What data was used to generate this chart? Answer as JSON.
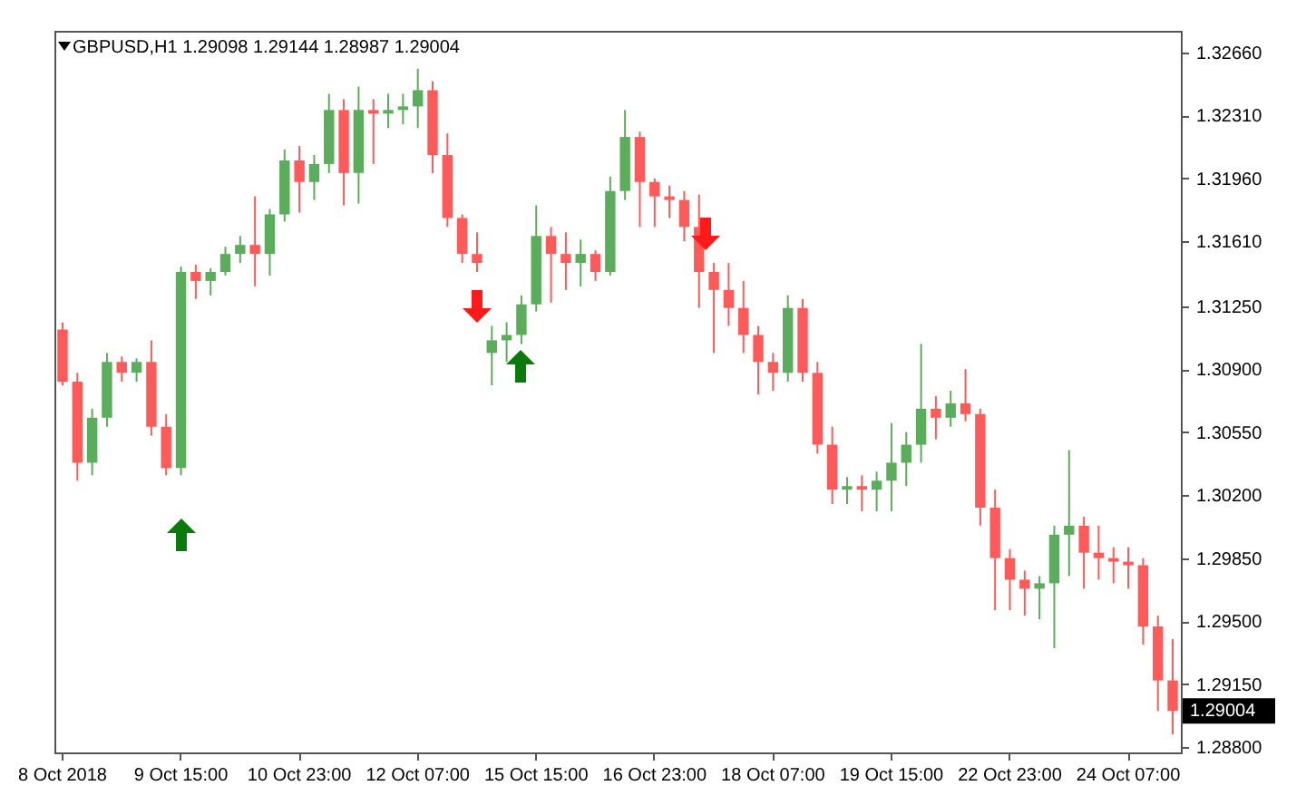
{
  "chart_data": {
    "type": "candlestick",
    "title": "GBPUSD,H1  1.29098 1.29144 1.28987 1.29004",
    "categories": [
      "8 Oct 2018",
      null,
      null,
      null,
      null,
      null,
      null,
      null,
      "9 Oct 15:00",
      null,
      null,
      null,
      null,
      null,
      null,
      null,
      "10 Oct 23:00",
      null,
      null,
      null,
      null,
      null,
      null,
      null,
      "12 Oct 07:00",
      null,
      null,
      null,
      null,
      null,
      null,
      null,
      "15 Oct 15:00",
      null,
      null,
      null,
      null,
      null,
      null,
      null,
      "16 Oct 23:00",
      null,
      null,
      null,
      null,
      null,
      null,
      null,
      "18 Oct 07:00",
      null,
      null,
      null,
      null,
      null,
      null,
      null,
      "19 Oct 15:00",
      null,
      null,
      null,
      null,
      null,
      null,
      null,
      "22 Oct 23:00",
      null,
      null,
      null,
      null,
      null,
      null,
      null,
      "24 Oct 07:00",
      null,
      null,
      null
    ],
    "ohlc": [
      [
        1.3112,
        1.3116,
        1.3081,
        1.3083
      ],
      [
        1.3083,
        1.3088,
        1.3028,
        1.3038
      ],
      [
        1.3038,
        1.3068,
        1.3031,
        1.3063
      ],
      [
        1.3063,
        1.3099,
        1.3058,
        1.3094
      ],
      [
        1.3094,
        1.3097,
        1.3083,
        1.3088
      ],
      [
        1.3088,
        1.3096,
        1.3083,
        1.3094
      ],
      [
        1.3094,
        1.3106,
        1.3053,
        1.3058
      ],
      [
        1.3058,
        1.3065,
        1.3031,
        1.3035
      ],
      [
        1.3035,
        1.3147,
        1.3031,
        1.3144
      ],
      [
        1.3144,
        1.3148,
        1.3129,
        1.3139
      ],
      [
        1.3139,
        1.3146,
        1.3131,
        1.3144
      ],
      [
        1.3144,
        1.3158,
        1.3142,
        1.3154
      ],
      [
        1.3154,
        1.3164,
        1.3149,
        1.3159
      ],
      [
        1.3159,
        1.3186,
        1.3136,
        1.3154
      ],
      [
        1.3154,
        1.3179,
        1.3142,
        1.3176
      ],
      [
        1.3176,
        1.3212,
        1.3172,
        1.3206
      ],
      [
        1.3206,
        1.3214,
        1.3177,
        1.3194
      ],
      [
        1.3194,
        1.3209,
        1.3184,
        1.3204
      ],
      [
        1.3204,
        1.3243,
        1.3199,
        1.3234
      ],
      [
        1.3234,
        1.324,
        1.3181,
        1.3199
      ],
      [
        1.3199,
        1.3247,
        1.3182,
        1.3234
      ],
      [
        1.3234,
        1.324,
        1.3204,
        1.3232
      ],
      [
        1.3232,
        1.3243,
        1.3224,
        1.3234
      ],
      [
        1.3234,
        1.3243,
        1.3226,
        1.3236
      ],
      [
        1.3236,
        1.3257,
        1.3224,
        1.3245
      ],
      [
        1.3245,
        1.325,
        1.3199,
        1.3209
      ],
      [
        1.3209,
        1.3221,
        1.3169,
        1.3174
      ],
      [
        1.3174,
        1.3176,
        1.3149,
        1.3154
      ],
      [
        1.3154,
        1.3166,
        1.3144,
        1.3149
      ],
      [
        1.3099,
        1.3114,
        1.3081,
        1.3106
      ],
      [
        1.3106,
        1.3116,
        1.3094,
        1.3109
      ],
      [
        1.3109,
        1.3131,
        1.3104,
        1.3126
      ],
      [
        1.3126,
        1.3181,
        1.3122,
        1.3164
      ],
      [
        1.3164,
        1.3169,
        1.3127,
        1.3154
      ],
      [
        1.3154,
        1.3166,
        1.3134,
        1.3149
      ],
      [
        1.3149,
        1.3162,
        1.3136,
        1.3154
      ],
      [
        1.3154,
        1.3156,
        1.3139,
        1.3144
      ],
      [
        1.3144,
        1.3197,
        1.3142,
        1.3189
      ],
      [
        1.3189,
        1.3234,
        1.3184,
        1.3219
      ],
      [
        1.3219,
        1.3222,
        1.3169,
        1.3194
      ],
      [
        1.3194,
        1.3196,
        1.3169,
        1.3186
      ],
      [
        1.3186,
        1.3192,
        1.3174,
        1.3184
      ],
      [
        1.3184,
        1.3189,
        1.3161,
        1.3169
      ],
      [
        1.3169,
        1.3187,
        1.3124,
        1.3144
      ],
      [
        1.3144,
        1.3149,
        1.3099,
        1.3134
      ],
      [
        1.3134,
        1.3149,
        1.3114,
        1.3124
      ],
      [
        1.3124,
        1.3139,
        1.3099,
        1.3109
      ],
      [
        1.3109,
        1.3114,
        1.3076,
        1.3094
      ],
      [
        1.3094,
        1.3099,
        1.3078,
        1.3088
      ],
      [
        1.3088,
        1.3131,
        1.3083,
        1.3124
      ],
      [
        1.3124,
        1.3129,
        1.3083,
        1.3088
      ],
      [
        1.3088,
        1.3094,
        1.3043,
        1.3048
      ],
      [
        1.3048,
        1.3058,
        1.3015,
        1.3023
      ],
      [
        1.3023,
        1.303,
        1.3015,
        1.3025
      ],
      [
        1.3025,
        1.3031,
        1.3011,
        1.3023
      ],
      [
        1.3023,
        1.3033,
        1.3011,
        1.3028
      ],
      [
        1.3028,
        1.306,
        1.3011,
        1.3038
      ],
      [
        1.3038,
        1.3055,
        1.3025,
        1.3048
      ],
      [
        1.3048,
        1.3104,
        1.3038,
        1.3068
      ],
      [
        1.3068,
        1.3075,
        1.3051,
        1.3063
      ],
      [
        1.3063,
        1.3078,
        1.3058,
        1.3071
      ],
      [
        1.3071,
        1.309,
        1.3061,
        1.3065
      ],
      [
        1.3065,
        1.3068,
        1.3003,
        1.3013
      ],
      [
        1.3013,
        1.3023,
        1.2956,
        1.2985
      ],
      [
        1.2985,
        1.299,
        1.2956,
        1.2973
      ],
      [
        1.2973,
        1.2978,
        1.2953,
        1.2968
      ],
      [
        1.2968,
        1.2975,
        1.2951,
        1.2971
      ],
      [
        1.2971,
        1.3003,
        1.2935,
        1.2998
      ],
      [
        1.2998,
        1.3045,
        1.2975,
        1.3003
      ],
      [
        1.3003,
        1.3008,
        1.2968,
        1.2988
      ],
      [
        1.2988,
        1.3003,
        1.2973,
        1.2985
      ],
      [
        1.2985,
        1.2991,
        1.2971,
        1.2983
      ],
      [
        1.2983,
        1.2991,
        1.2968,
        1.2981
      ],
      [
        1.2981,
        1.2985,
        1.2937,
        1.2947
      ],
      [
        1.2947,
        1.2953,
        1.29,
        1.2917
      ],
      [
        1.2917,
        1.294,
        1.2887,
        1.29
      ]
    ],
    "colors": [
      "#ff5a5a",
      "#ff5a5a",
      "#5aad5a",
      "#5aad5a",
      "#ff5a5a",
      "#5aad5a",
      "#ff5a5a",
      "#ff5a5a",
      "#5aad5a",
      "#ff5a5a",
      "#5aad5a",
      "#5aad5a",
      "#5aad5a",
      "#ff5a5a",
      "#5aad5a",
      "#5aad5a",
      "#ff5a5a",
      "#5aad5a",
      "#5aad5a",
      "#ff5a5a",
      "#5aad5a",
      "#ff5a5a",
      "#5aad5a",
      "#5aad5a",
      "#5aad5a",
      "#ff5a5a",
      "#ff5a5a",
      "#ff5a5a",
      "#ff5a5a",
      "#5aad5a",
      "#5aad5a",
      "#5aad5a",
      "#5aad5a",
      "#ff5a5a",
      "#ff5a5a",
      "#5aad5a",
      "#ff5a5a",
      "#5aad5a",
      "#5aad5a",
      "#ff5a5a",
      "#ff5a5a",
      "#ff5a5a",
      "#ff5a5a",
      "#ff5a5a",
      "#ff5a5a",
      "#ff5a5a",
      "#ff5a5a",
      "#ff5a5a",
      "#ff5a5a",
      "#5aad5a",
      "#ff5a5a",
      "#ff5a5a",
      "#ff5a5a",
      "#5aad5a",
      "#ff5a5a",
      "#5aad5a",
      "#5aad5a",
      "#5aad5a",
      "#5aad5a",
      "#ff5a5a",
      "#5aad5a",
      "#ff5a5a",
      "#ff5a5a",
      "#ff5a5a",
      "#ff5a5a",
      "#ff5a5a",
      "#5aad5a",
      "#5aad5a",
      "#5aad5a",
      "#ff5a5a",
      "#ff5a5a",
      "#ff5a5a",
      "#ff5a5a",
      "#ff5a5a",
      "#ff5a5a",
      "#ff5a5a"
    ],
    "ylim": [
      1.2877,
      1.3278
    ],
    "yticks": [
      {
        "value": 1.3266,
        "label": "1.32660"
      },
      {
        "value": 1.3231,
        "label": "1.32310"
      },
      {
        "value": 1.3196,
        "label": "1.31960"
      },
      {
        "value": 1.3161,
        "label": "1.31610"
      },
      {
        "value": 1.3125,
        "label": "1.31250"
      },
      {
        "value": 1.309,
        "label": "1.30900"
      },
      {
        "value": 1.3055,
        "label": "1.30550"
      },
      {
        "value": 1.302,
        "label": "1.30200"
      },
      {
        "value": 1.2985,
        "label": "1.29850"
      },
      {
        "value": 1.295,
        "label": "1.29500"
      },
      {
        "value": 1.2915,
        "label": "1.29150"
      },
      {
        "value": 1.288,
        "label": "1.28800"
      }
    ],
    "annotations": [
      "1.29004"
    ]
  }
}
